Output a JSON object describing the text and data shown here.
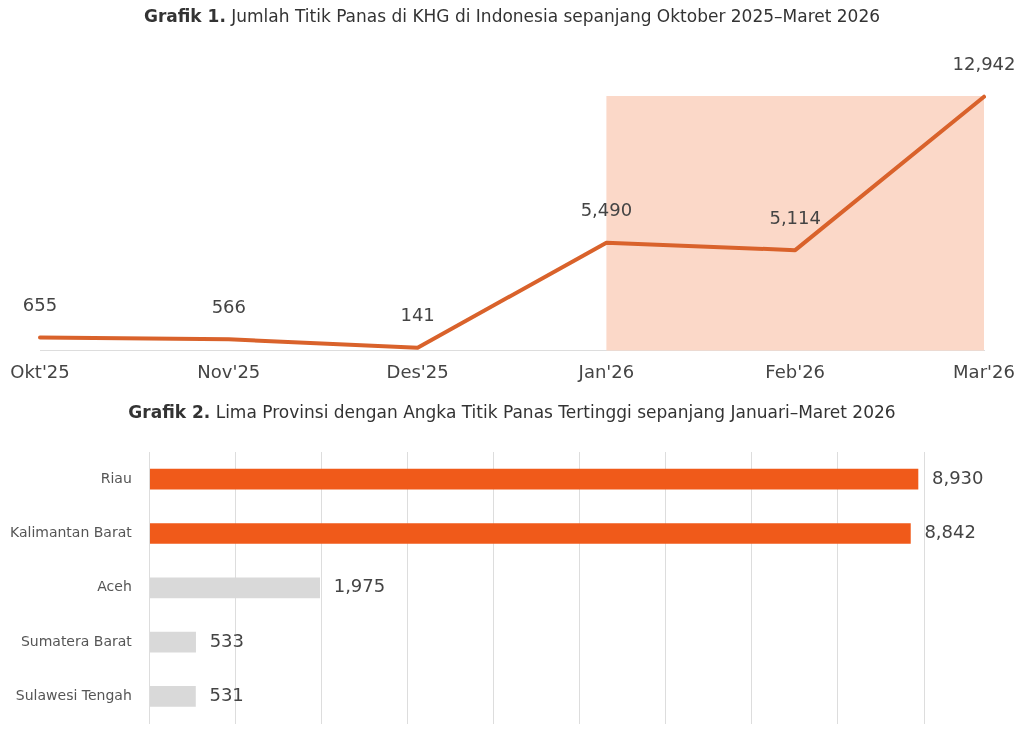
{
  "chart_data": [
    {
      "type": "line",
      "title": "Grafik 1. Jumlah Titik Panas di KHG di Indonesia sepanjang Oktober 2025–Maret 2026",
      "categories": [
        "Okt'25",
        "Nov'25",
        "Des'25",
        "Jan'26",
        "Feb'26",
        "Mar'26"
      ],
      "series": [
        {
          "color": "#d9622b",
          "values": [
            655,
            566,
            141,
            5490,
            5114,
            12942
          ],
          "value_labels": [
            "655",
            "566",
            "141",
            "5,490",
            "5,114",
            "12,942"
          ]
        }
      ],
      "grid": false,
      "legend": false,
      "marker": "none",
      "line_style": "solid",
      "tick_labels": "x",
      "bands": [
        {
          "axis": "x",
          "from": "Jan'26",
          "to": "Mar'26",
          "color": "#fbd8c8"
        }
      ]
    },
    {
      "type": "bar",
      "orientation": "horizontal",
      "title": "Grafik 2. Lima Provinsi dengan Angka Titik Panas Tertinggi sepanjang Januari–Maret 2026",
      "categories": [
        "Riau",
        "Kalimantan Barat",
        "Aceh",
        "Sumatera Barat",
        "Sulawesi Tengah"
      ],
      "values": [
        8930,
        8842,
        1975,
        533,
        531
      ],
      "value_labels": [
        "8,930",
        "8,842",
        "1,975",
        "533",
        "531"
      ],
      "colors": [
        "#f05a1a",
        "#f05a1a",
        "#d9d9d9",
        "#d9d9d9",
        "#d9d9d9"
      ],
      "xlim": [
        0,
        9000
      ],
      "xticks": [
        {
          "value": 0,
          "label": null
        },
        {
          "value": 1000,
          "label": null
        },
        {
          "value": 2000,
          "label": null
        },
        {
          "value": 3000,
          "label": null
        },
        {
          "value": 4000,
          "label": null
        },
        {
          "value": 5000,
          "label": null
        },
        {
          "value": 6000,
          "label": null
        },
        {
          "value": 7000,
          "label": null
        },
        {
          "value": 8000,
          "label": null
        },
        {
          "value": 9000,
          "label": null
        }
      ],
      "grid": "x",
      "legend": false,
      "tick_labels": "y"
    }
  ]
}
